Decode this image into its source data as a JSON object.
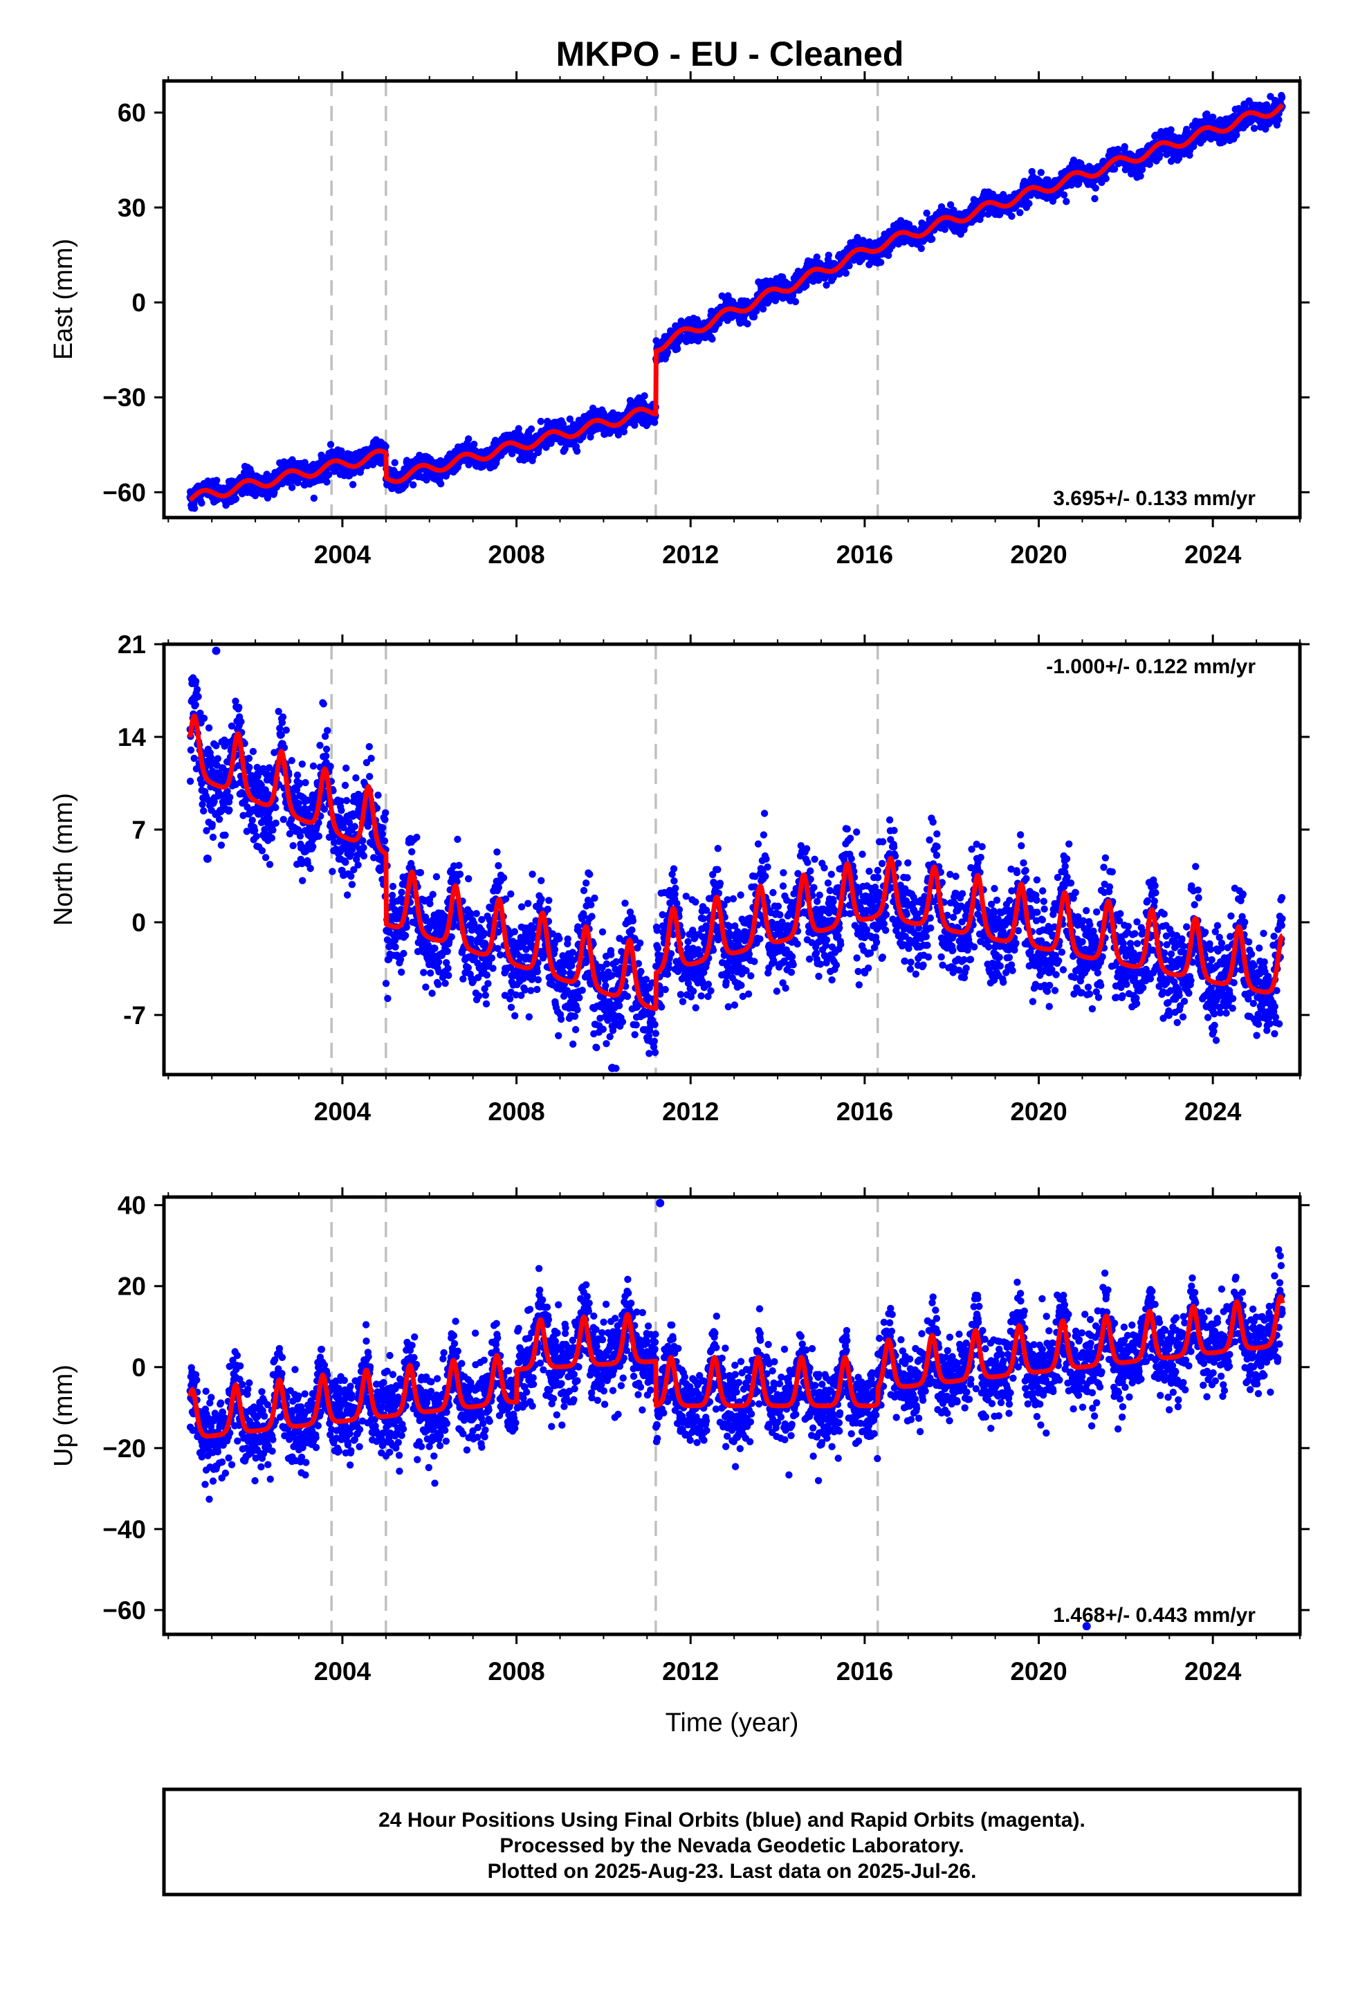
{
  "title": "MKPO  - EU - Cleaned",
  "colors": {
    "points": "#0000ff",
    "model": "#ff0000",
    "event_lines": "#c0c0c0",
    "frame": "#000000"
  },
  "footer": {
    "lines": [
      "24 Hour Positions Using Final Orbits (blue) and Rapid Orbits (magenta).",
      "Processed by the Nevada Geodetic Laboratory.",
      "Plotted on 2025-Aug-23. Last data on 2025-Jul-26."
    ]
  },
  "chart_data": [
    {
      "type": "scatter",
      "component": "east",
      "ylabel": "East (mm)",
      "xlabel": "",
      "xlim": [
        1999.9,
        2026.0
      ],
      "ylim": [
        -68,
        70
      ],
      "yticks": [
        -60,
        -30,
        0,
        30,
        60
      ],
      "ytick_labels": [
        "−60",
        "−30",
        "0",
        "30",
        "60"
      ],
      "xticks": [
        2004,
        2008,
        2012,
        2016,
        2020,
        2024
      ],
      "xtick_labels": [
        "2004",
        "2008",
        "2012",
        "2016",
        "2020",
        "2024"
      ],
      "rate_text": "3.695+/- 0.133 mm/yr",
      "rate_position": "bottom-right",
      "event_lines": [
        2003.75,
        2005.0,
        2011.2,
        2016.3
      ],
      "series": [
        {
          "role": "daily positions",
          "style": "points",
          "x_start": 2000.5,
          "x_end": 2025.6,
          "noise": 1.8,
          "outliers": []
        },
        {
          "role": "model",
          "style": "line",
          "x_start": 2000.5,
          "x_end": 2025.6
        }
      ],
      "model": {
        "segments": [
          {
            "x_start": 2000.5,
            "x_end": 2005.0,
            "y_start": -62,
            "y_end": -48
          },
          {
            "x_start": 2005.0,
            "x_end": 2011.2,
            "y_start": -56,
            "y_end": -34
          },
          {
            "x_start": 2011.2,
            "x_end": 2016.3,
            "y_start": -14,
            "y_end": 18
          },
          {
            "x_start": 2016.3,
            "x_end": 2025.6,
            "y_start": 18,
            "y_end": 62
          }
        ],
        "seasonal_amplitude": 1.6,
        "seasonal_phase_year": 0.55,
        "sharpness": 1.0
      }
    },
    {
      "type": "scatter",
      "component": "north",
      "ylabel": "North (mm)",
      "xlabel": "",
      "xlim": [
        1999.9,
        2026.0
      ],
      "ylim": [
        -11.5,
        21
      ],
      "yticks": [
        -7,
        0,
        7,
        14,
        21
      ],
      "ytick_labels": [
        "-7",
        "0",
        "7",
        "14",
        "21"
      ],
      "xticks": [
        2004,
        2008,
        2012,
        2016,
        2020,
        2024
      ],
      "xtick_labels": [
        "2004",
        "2008",
        "2012",
        "2016",
        "2020",
        "2024"
      ],
      "rate_text": "-1.000+/- 0.122 mm/yr",
      "rate_position": "top-right",
      "event_lines": [
        2003.75,
        2005.0,
        2011.2,
        2016.3
      ],
      "series": [
        {
          "role": "daily positions",
          "style": "points",
          "x_start": 2000.5,
          "x_end": 2025.6,
          "noise": 1.8,
          "outliers": [
            [
              2001.1,
              20.5
            ],
            [
              2000.9,
              4.8
            ],
            [
              2010.2,
              -11.0
            ]
          ]
        },
        {
          "role": "model",
          "style": "line",
          "x_start": 2000.5,
          "x_end": 2025.6
        }
      ],
      "model": {
        "segments": [
          {
            "x_start": 2000.5,
            "x_end": 2005.0,
            "y_start": 12.5,
            "y_end": 6.5
          },
          {
            "x_start": 2005.0,
            "x_end": 2011.2,
            "y_start": 1.2,
            "y_end": -5.2
          },
          {
            "x_start": 2011.2,
            "x_end": 2016.3,
            "y_start": -2.5,
            "y_end": 1.8
          },
          {
            "x_start": 2016.3,
            "x_end": 2025.6,
            "y_start": 1.8,
            "y_end": -4.2
          }
        ],
        "seasonal_amplitude": 2.3,
        "seasonal_phase_year": 0.6,
        "sharpness": 2.5
      }
    },
    {
      "type": "scatter",
      "component": "up",
      "ylabel": "Up (mm)",
      "xlabel": "Time (year)",
      "xlim": [
        1999.9,
        2026.0
      ],
      "ylim": [
        -66,
        42
      ],
      "yticks": [
        -60,
        -40,
        -20,
        0,
        20,
        40
      ],
      "ytick_labels": [
        "−60",
        "−40",
        "−20",
        "0",
        "20",
        "40"
      ],
      "xticks": [
        2004,
        2008,
        2012,
        2016,
        2020,
        2024
      ],
      "xtick_labels": [
        "2004",
        "2008",
        "2012",
        "2016",
        "2020",
        "2024"
      ],
      "rate_text": "1.468+/- 0.443 mm/yr",
      "rate_position": "bottom-right",
      "event_lines": [
        2003.75,
        2005.0,
        2011.2,
        2016.3
      ],
      "series": [
        {
          "role": "daily positions",
          "style": "points",
          "x_start": 2000.5,
          "x_end": 2025.6,
          "noise": 5.0,
          "outliers": [
            [
              2011.3,
              40.5
            ],
            [
              2021.1,
              -64.0
            ]
          ]
        },
        {
          "role": "model",
          "style": "line",
          "x_start": 2000.5,
          "x_end": 2025.6
        }
      ],
      "model": {
        "segments": [
          {
            "x_start": 2000.5,
            "x_end": 2008.0,
            "y_start": -14,
            "y_end": -5
          },
          {
            "x_start": 2008.0,
            "x_end": 2011.2,
            "y_start": 3,
            "y_end": 5
          },
          {
            "x_start": 2011.2,
            "x_end": 2016.3,
            "y_start": -6,
            "y_end": -6
          },
          {
            "x_start": 2016.3,
            "x_end": 2025.6,
            "y_start": -2,
            "y_end": 9
          }
        ],
        "seasonal_amplitude": 6.0,
        "seasonal_phase_year": 0.55,
        "sharpness": 3.0
      }
    }
  ]
}
